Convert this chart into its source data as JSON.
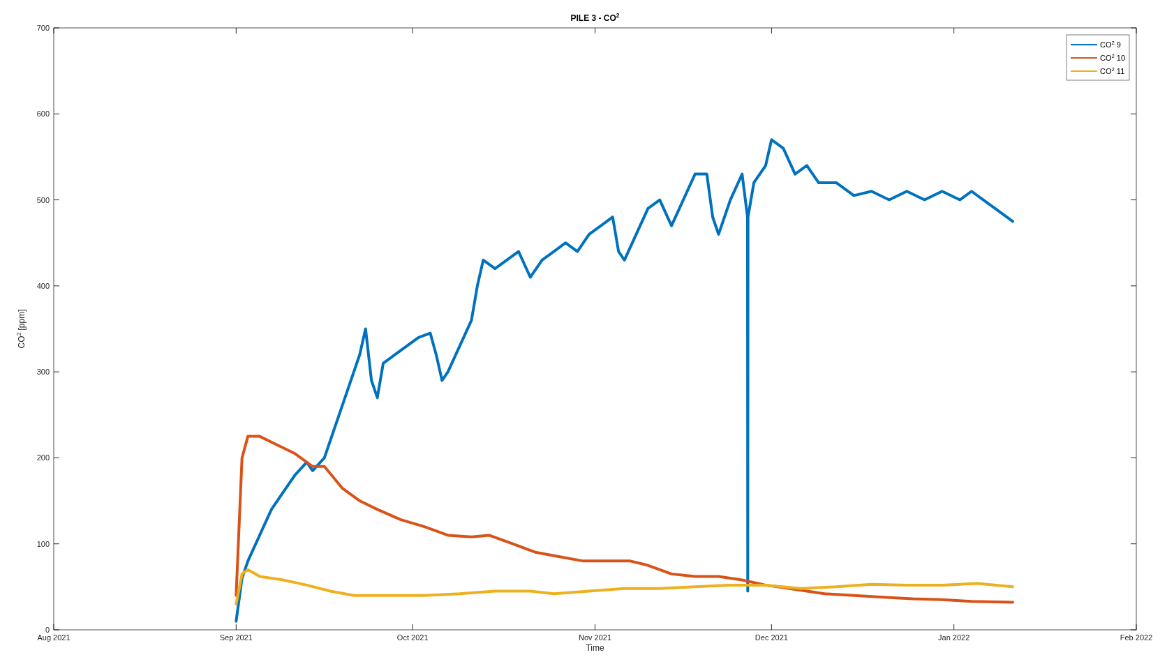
{
  "chart_data": {
    "type": "line",
    "title": "PILE 3 - CO$^{2}$",
    "xlabel": "Time",
    "ylabel": "CO$^{2}$ [ppm]",
    "legend": "top right",
    "line_style": "solid",
    "xlim": [
      "2021-08-01",
      "2022-02-01"
    ],
    "xticks": [
      {
        "value": "2021-08-01",
        "label": "Aug 2021"
      },
      {
        "value": "2021-09-01",
        "label": "Sep 2021"
      },
      {
        "value": "2021-10-01",
        "label": "Oct 2021"
      },
      {
        "value": "2021-11-01",
        "label": "Nov 2021"
      },
      {
        "value": "2021-12-01",
        "label": "Dec 2021"
      },
      {
        "value": "2022-01-01",
        "label": "Jan 2022"
      },
      {
        "value": "2022-02-01",
        "label": "Feb 2022"
      }
    ],
    "ylim": [
      0,
      700
    ],
    "yticks": [
      0,
      100,
      200,
      300,
      400,
      500,
      600,
      700
    ],
    "series": [
      {
        "name": "CO$^{2}$ 9",
        "color": "#0072bd",
        "x": [
          "2021-09-01",
          "2021-09-02",
          "2021-09-03",
          "2021-09-05",
          "2021-09-07",
          "2021-09-09",
          "2021-09-11",
          "2021-09-13",
          "2021-09-14",
          "2021-09-16",
          "2021-09-18",
          "2021-09-20",
          "2021-09-22",
          "2021-09-23",
          "2021-09-24",
          "2021-09-25",
          "2021-09-26",
          "2021-09-28",
          "2021-09-30",
          "2021-10-02",
          "2021-10-04",
          "2021-10-05",
          "2021-10-06",
          "2021-10-07",
          "2021-10-09",
          "2021-10-11",
          "2021-10-12",
          "2021-10-13",
          "2021-10-15",
          "2021-10-17",
          "2021-10-19",
          "2021-10-21",
          "2021-10-23",
          "2021-10-25",
          "2021-10-27",
          "2021-10-29",
          "2021-10-31",
          "2021-11-02",
          "2021-11-04",
          "2021-11-05",
          "2021-11-06",
          "2021-11-08",
          "2021-11-10",
          "2021-11-12",
          "2021-11-14",
          "2021-11-16",
          "2021-11-18",
          "2021-11-20",
          "2021-11-21",
          "2021-11-22",
          "2021-11-24",
          "2021-11-26",
          "2021-11-26T22:00",
          "2021-11-26T23:00",
          "2021-11-27",
          "2021-11-28",
          "2021-11-30",
          "2021-12-01",
          "2021-12-03",
          "2021-12-05",
          "2021-12-07",
          "2021-12-09",
          "2021-12-12",
          "2021-12-15",
          "2021-12-18",
          "2021-12-21",
          "2021-12-24",
          "2021-12-27",
          "2021-12-30",
          "2022-01-02",
          "2022-01-04",
          "2022-01-06",
          "2022-01-08",
          "2022-01-11"
        ],
        "values": [
          10,
          60,
          80,
          110,
          140,
          160,
          180,
          195,
          185,
          200,
          240,
          280,
          320,
          350,
          290,
          270,
          310,
          320,
          330,
          340,
          345,
          320,
          290,
          300,
          330,
          360,
          400,
          430,
          420,
          430,
          440,
          410,
          430,
          440,
          450,
          440,
          460,
          470,
          480,
          440,
          430,
          460,
          490,
          500,
          470,
          500,
          530,
          530,
          480,
          460,
          500,
          530,
          480,
          45,
          480,
          520,
          540,
          570,
          560,
          530,
          540,
          520,
          520,
          505,
          510,
          500,
          510,
          500,
          510,
          500,
          510,
          500,
          490,
          475
        ]
      },
      {
        "name": "CO$^{2}$ 10",
        "color": "#d95319",
        "x": [
          "2021-09-01",
          "2021-09-02",
          "2021-09-03",
          "2021-09-05",
          "2021-09-08",
          "2021-09-11",
          "2021-09-14",
          "2021-09-16",
          "2021-09-19",
          "2021-09-22",
          "2021-09-25",
          "2021-09-29",
          "2021-10-03",
          "2021-10-07",
          "2021-10-11",
          "2021-10-14",
          "2021-10-18",
          "2021-10-22",
          "2021-10-26",
          "2021-10-30",
          "2021-11-03",
          "2021-11-07",
          "2021-11-10",
          "2021-11-14",
          "2021-11-18",
          "2021-11-22",
          "2021-11-26",
          "2021-11-30",
          "2021-12-05",
          "2021-12-10",
          "2021-12-15",
          "2021-12-20",
          "2021-12-25",
          "2021-12-30",
          "2022-01-04",
          "2022-01-11"
        ],
        "values": [
          40,
          200,
          225,
          225,
          215,
          205,
          190,
          190,
          165,
          150,
          140,
          128,
          120,
          110,
          108,
          110,
          100,
          90,
          85,
          80,
          80,
          80,
          75,
          65,
          62,
          62,
          58,
          52,
          47,
          42,
          40,
          38,
          36,
          35,
          33,
          32
        ]
      },
      {
        "name": "CO$^{2}$ 11",
        "color": "#edb120",
        "x": [
          "2021-09-01",
          "2021-09-02",
          "2021-09-03",
          "2021-09-05",
          "2021-09-09",
          "2021-09-13",
          "2021-09-17",
          "2021-09-21",
          "2021-09-27",
          "2021-10-03",
          "2021-10-09",
          "2021-10-15",
          "2021-10-21",
          "2021-10-25",
          "2021-10-31",
          "2021-11-06",
          "2021-11-12",
          "2021-11-18",
          "2021-11-24",
          "2021-11-30",
          "2021-12-06",
          "2021-12-12",
          "2021-12-18",
          "2021-12-24",
          "2021-12-30",
          "2022-01-05",
          "2022-01-11"
        ],
        "values": [
          30,
          65,
          70,
          62,
          58,
          52,
          45,
          40,
          40,
          40,
          42,
          45,
          45,
          42,
          45,
          48,
          48,
          50,
          52,
          52,
          48,
          50,
          53,
          52,
          52,
          54,
          50
        ]
      }
    ]
  }
}
